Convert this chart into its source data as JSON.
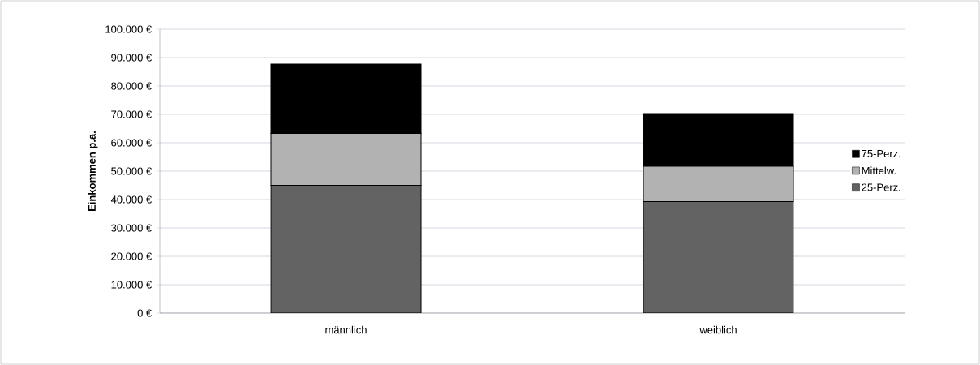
{
  "chart_data": {
    "type": "bar",
    "stacked": true,
    "ylabel": "Einkommen p.a.",
    "categories": [
      "männlich",
      "weiblich"
    ],
    "series": [
      {
        "name": "25-Perz.",
        "color": "#636363",
        "values": [
          45000,
          39300
        ]
      },
      {
        "name": "Mittelw.",
        "color": "#b2b2b2",
        "values": [
          18300,
          12400
        ]
      },
      {
        "name": "75-Perz.",
        "color": "#000000",
        "values": [
          24400,
          18600
        ]
      }
    ],
    "ylim": [
      0,
      100000
    ],
    "yticks": [
      {
        "value": 0,
        "label": "0 €"
      },
      {
        "value": 10000,
        "label": "10.000 €"
      },
      {
        "value": 20000,
        "label": "20.000 €"
      },
      {
        "value": 30000,
        "label": "30.000 €"
      },
      {
        "value": 40000,
        "label": "40.000 €"
      },
      {
        "value": 50000,
        "label": "50.000 €"
      },
      {
        "value": 60000,
        "label": "60.000 €"
      },
      {
        "value": 70000,
        "label": "70.000 €"
      },
      {
        "value": 80000,
        "label": "80.000 €"
      },
      {
        "value": 90000,
        "label": "90.000 €"
      },
      {
        "value": 100000,
        "label": "100.000 €"
      }
    ],
    "grid": "y",
    "legend": "right"
  }
}
